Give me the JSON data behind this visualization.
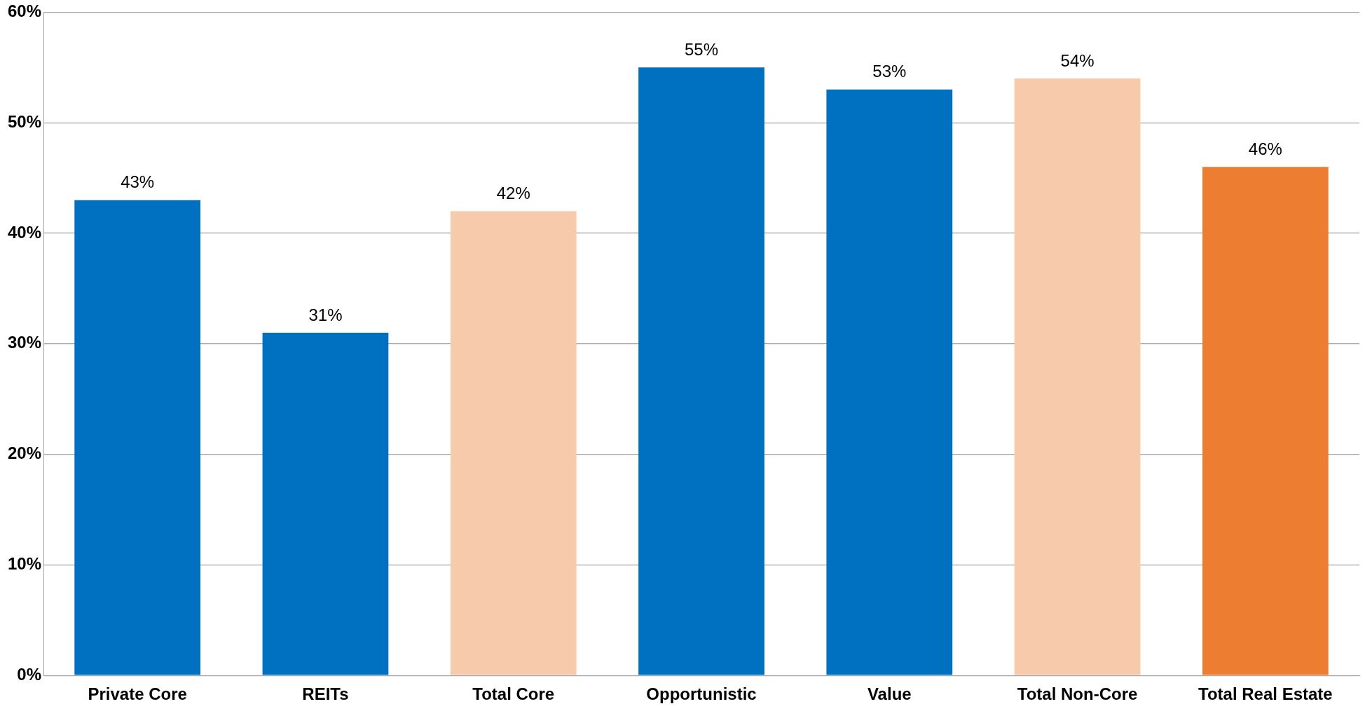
{
  "chart_data": {
    "type": "bar",
    "categories": [
      "Private Core",
      "REITs",
      "Total Core",
      "Opportunistic",
      "Value",
      "Total Non-Core",
      "Total Real Estate"
    ],
    "values": [
      43,
      31,
      42,
      55,
      53,
      54,
      46
    ],
    "colors": [
      "#0070c0",
      "#0070c0",
      "#f7caac",
      "#0070c0",
      "#0070c0",
      "#f7caac",
      "#ed7d31"
    ],
    "value_labels": [
      "43%",
      "31%",
      "42%",
      "55%",
      "53%",
      "54%",
      "46%"
    ],
    "ylim": [
      0,
      60
    ],
    "yticks": [
      {
        "value": 0,
        "label": "0%"
      },
      {
        "value": 10,
        "label": "10%"
      },
      {
        "value": 20,
        "label": "20%"
      },
      {
        "value": 30,
        "label": "30%"
      },
      {
        "value": 40,
        "label": "40%"
      },
      {
        "value": 50,
        "label": "50%"
      },
      {
        "value": 60,
        "label": "60%"
      }
    ],
    "grid": "y",
    "legend": false
  }
}
